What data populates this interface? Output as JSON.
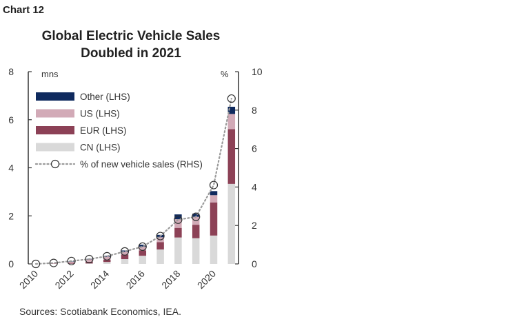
{
  "figure": {
    "label": "Chart 12",
    "title_line1": "Global Electric Vehicle Sales",
    "title_line2": "Doubled in 2021",
    "source": "Sources: Scotiabank Economics, IEA."
  },
  "chart_data": {
    "type": "bar",
    "stacked": true,
    "x": [
      2010,
      2011,
      2012,
      2013,
      2014,
      2015,
      2016,
      2017,
      2018,
      2019,
      2020,
      2021
    ],
    "x_tick_labels": [
      "2010",
      "2012",
      "2014",
      "2016",
      "2018",
      "2020"
    ],
    "series": [
      {
        "name": "CN (LHS)",
        "axis": "left",
        "color": "#d9d9d9",
        "values": [
          0.0,
          0.0,
          0.01,
          0.02,
          0.08,
          0.2,
          0.34,
          0.6,
          1.1,
          1.07,
          1.18,
          3.33
        ]
      },
      {
        "name": "EUR (LHS)",
        "axis": "left",
        "color": "#8c4156",
        "values": [
          0.0,
          0.01,
          0.03,
          0.07,
          0.1,
          0.19,
          0.22,
          0.31,
          0.4,
          0.56,
          1.38,
          2.28
        ]
      },
      {
        "name": "US (LHS)",
        "axis": "left",
        "color": "#d2aab7",
        "values": [
          0.0,
          0.01,
          0.05,
          0.1,
          0.12,
          0.11,
          0.16,
          0.2,
          0.36,
          0.33,
          0.3,
          0.63
        ]
      },
      {
        "name": "Other (LHS)",
        "axis": "left",
        "color": "#0f2a5e",
        "values": [
          0.0,
          0.0,
          0.01,
          0.02,
          0.04,
          0.06,
          0.08,
          0.1,
          0.2,
          0.13,
          0.17,
          0.3
        ]
      },
      {
        "name": "% of new vehicle sales (RHS)",
        "axis": "right",
        "type": "line",
        "style": "dotted-with-open-circles",
        "color": "#9a9a9a",
        "values": [
          0.0,
          0.05,
          0.15,
          0.25,
          0.4,
          0.65,
          0.9,
          1.45,
          2.3,
          2.45,
          4.1,
          8.6
        ]
      }
    ],
    "y_left": {
      "unit": "mns",
      "ylim": [
        0,
        8
      ],
      "ticks": [
        0,
        2,
        4,
        6,
        8
      ]
    },
    "y_right": {
      "unit": "%",
      "ylim": [
        0,
        10
      ],
      "ticks": [
        0,
        2,
        4,
        6,
        8,
        10
      ]
    },
    "legend_placement": "top-left",
    "grid": false
  }
}
